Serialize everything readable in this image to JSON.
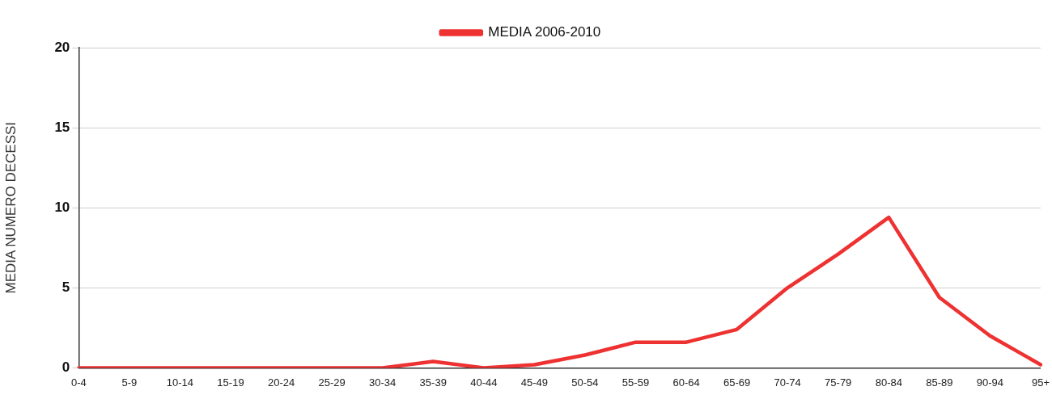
{
  "chart_data": {
    "type": "line",
    "ylabel": "MEDIA NUMERO DECESSI",
    "categories": [
      "0-4",
      "5-9",
      "10-14",
      "15-19",
      "20-24",
      "25-29",
      "30-34",
      "35-39",
      "40-44",
      "45-49",
      "50-54",
      "55-59",
      "60-64",
      "65-69",
      "70-74",
      "75-79",
      "80-84",
      "85-89",
      "90-94",
      "95+"
    ],
    "series": [
      {
        "name": "MEDIA 2006-2010",
        "color": "#ee3131",
        "values": [
          0,
          0,
          0,
          0,
          0,
          0,
          0,
          0.4,
          0,
          0.2,
          0.8,
          1.6,
          1.6,
          2.4,
          5.0,
          7.1,
          9.4,
          4.4,
          2.0,
          0.2
        ]
      }
    ],
    "ylim": [
      0,
      20
    ],
    "yticks": [
      0,
      5,
      10,
      15,
      20
    ],
    "grid": "y",
    "legend": "top",
    "marker": "none",
    "line_style": "solid"
  }
}
